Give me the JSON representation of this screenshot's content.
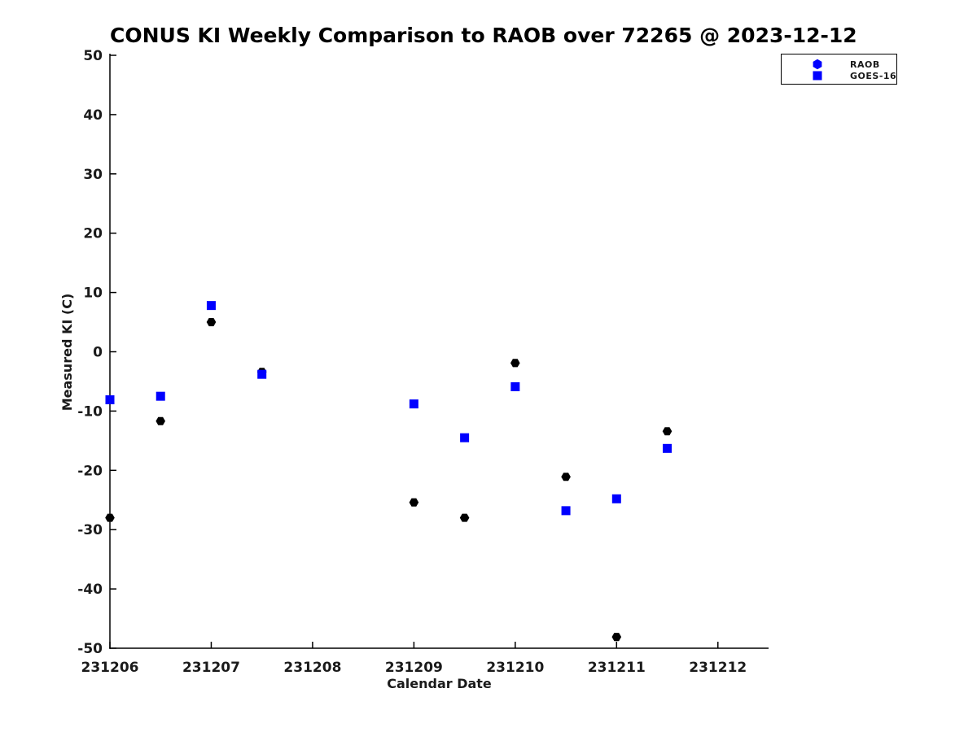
{
  "chart_data": {
    "type": "scatter",
    "title": "CONUS KI Weekly Comparison to RAOB over 72265 @ 2023-12-12",
    "xlabel": "Calendar Date",
    "ylabel": "Measured KI (C)",
    "xlim": [
      231206,
      231212.5
    ],
    "ylim": [
      -50,
      50
    ],
    "grid": false,
    "legend_position": "top-right",
    "x_ticks": [
      231206,
      231207,
      231208,
      231209,
      231210,
      231211,
      231212
    ],
    "x_tick_labels": [
      "231206",
      "231207",
      "231208",
      "231209",
      "231210",
      "231211",
      "231212"
    ],
    "y_ticks": [
      -50,
      -40,
      -30,
      -20,
      -10,
      0,
      10,
      20,
      30,
      40,
      50
    ],
    "y_tick_labels": [
      "-50",
      "-40",
      "-30",
      "-20",
      "-10",
      "0",
      "10",
      "20",
      "30",
      "40",
      "50"
    ],
    "series": [
      {
        "name": "RAOB",
        "marker": "hexagon",
        "color": "#000000",
        "legend_marker_color": "#0000ff",
        "points": [
          [
            231206.0,
            -28.0
          ],
          [
            231206.5,
            -11.7
          ],
          [
            231207.0,
            5.0
          ],
          [
            231207.5,
            -3.4
          ],
          [
            231209.0,
            -25.4
          ],
          [
            231209.5,
            -28.0
          ],
          [
            231210.0,
            -1.9
          ],
          [
            231210.5,
            -21.1
          ],
          [
            231211.0,
            -48.1
          ],
          [
            231211.5,
            -13.4
          ]
        ]
      },
      {
        "name": "GOES-16",
        "marker": "square",
        "color": "#0000ff",
        "legend_marker_color": "#0000ff",
        "points": [
          [
            231206.0,
            -8.1
          ],
          [
            231206.5,
            -7.5
          ],
          [
            231207.0,
            7.8
          ],
          [
            231207.5,
            -3.8
          ],
          [
            231209.0,
            -8.8
          ],
          [
            231209.5,
            -14.5
          ],
          [
            231210.0,
            -5.9
          ],
          [
            231210.5,
            -26.8
          ],
          [
            231211.0,
            -24.8
          ],
          [
            231211.5,
            -16.3
          ]
        ]
      }
    ]
  }
}
